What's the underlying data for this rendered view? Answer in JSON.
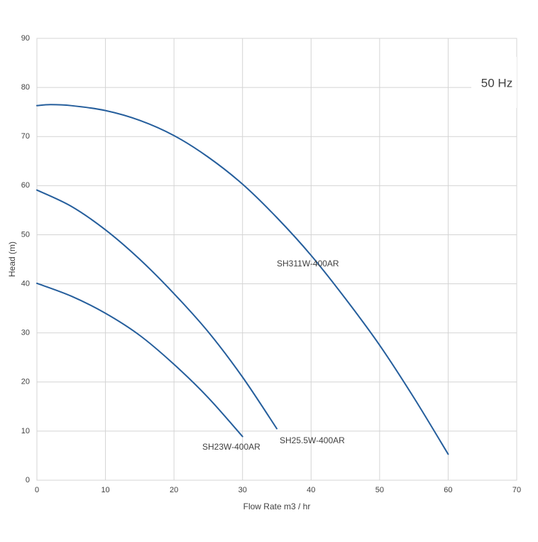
{
  "chart_data": {
    "type": "line",
    "x_label": "Flow Rate m3 / hr",
    "y_label": "Head (m)",
    "annotation": "50 Hz",
    "xlim": [
      0,
      70
    ],
    "xticks": [
      0,
      10,
      20,
      30,
      40,
      50,
      60,
      70
    ],
    "ylim": [
      0,
      90
    ],
    "yticks": [
      0,
      10,
      20,
      30,
      40,
      50,
      60,
      70,
      80,
      90
    ],
    "grid": true,
    "series": [
      {
        "name": "SH311W-400AR",
        "color": "#255e9c",
        "x": [
          0,
          2,
          5,
          10,
          15,
          20,
          25,
          30,
          35,
          40,
          45,
          50,
          55,
          60
        ],
        "values": [
          76.3,
          76.5,
          76.3,
          75.3,
          73.3,
          70.2,
          65.8,
          60.3,
          53.5,
          45.8,
          37,
          27.5,
          16.8,
          5.3
        ]
      },
      {
        "name": "SH25.5W-400AR",
        "color": "#255e9c",
        "x": [
          0,
          5,
          10,
          15,
          20,
          25,
          30,
          35
        ],
        "values": [
          59.1,
          55.8,
          51,
          45,
          38,
          30.2,
          21,
          10.5
        ]
      },
      {
        "name": "SH23W-400AR",
        "color": "#255e9c",
        "x": [
          0,
          5,
          10,
          15,
          20,
          25,
          30
        ],
        "values": [
          40.1,
          37.5,
          34,
          29.5,
          23.6,
          16.8,
          8.9
        ]
      }
    ]
  }
}
